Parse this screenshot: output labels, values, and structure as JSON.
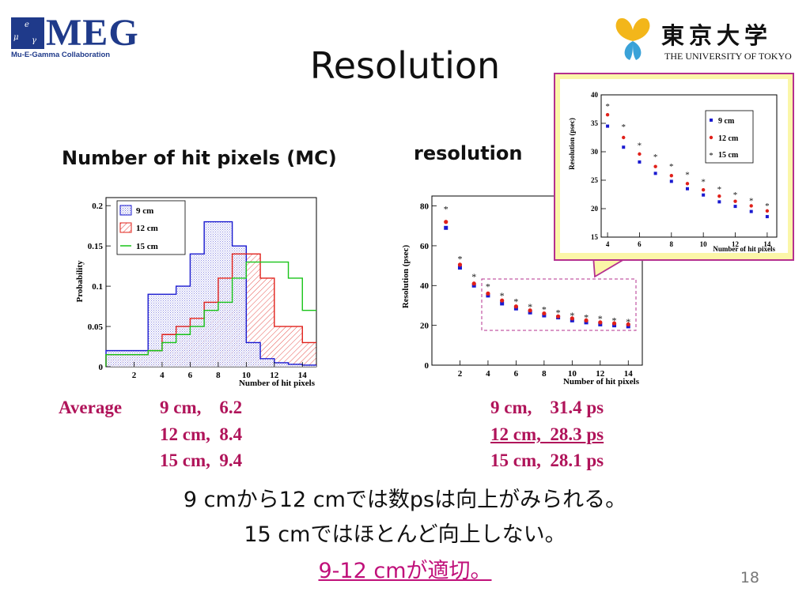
{
  "logos": {
    "meg_word": "MEG",
    "meg_sub": "Mu-E-Gamma Collaboration",
    "meg_mark_glyphs": [
      "μ",
      "e",
      "γ"
    ],
    "ut_jp": "東京大学",
    "ut_en": "THE UNIVERSITY OF TOKYO"
  },
  "slide": {
    "title": "Resolution",
    "left_heading": "Number of hit pixels (MC)",
    "right_heading": "resolution",
    "page_number": "18"
  },
  "stats": {
    "average_label": "Average",
    "hits": [
      "9 cm,    6.2",
      "12 cm,  8.4",
      "15 cm,  9.4"
    ],
    "resolution": [
      "9 cm,    31.4 ps",
      "12 cm,  28.3 ps",
      "15 cm,  28.1 ps"
    ]
  },
  "text": {
    "line1": "9 cmから12 cmでは数psは向上がみられる。",
    "line2": "15 cmではほとんど向上しない。",
    "line3": "9-12 cmが適切。"
  },
  "colors": {
    "blue": "#1a1ad0",
    "red": "#e0201a",
    "green": "#18c418",
    "accent": "#b0145a",
    "meg": "#1f3a8a",
    "callout_bg": "#fbf6a8",
    "callout_border": "#b5308f",
    "highlight_box": "#b5308f"
  },
  "chart_data": [
    {
      "type": "histogram",
      "ylabel": "Probability",
      "xlabel": "Number of hit pixels",
      "xlim": [
        0,
        15
      ],
      "ylim": [
        0,
        0.21
      ],
      "x_ticks": [
        "2",
        "4",
        "6",
        "8",
        "10",
        "12",
        "14"
      ],
      "y_ticks": [
        "0",
        "0.05",
        "0.1",
        "0.15",
        "0.2"
      ],
      "bin_edges": [
        0,
        1,
        2,
        3,
        4,
        5,
        6,
        7,
        8,
        9,
        10,
        11,
        12,
        13,
        14,
        15
      ],
      "legend": "top-left",
      "series": [
        {
          "name": "9 cm",
          "color": "#1a1ad0",
          "values": [
            0.02,
            0.02,
            0.02,
            0.09,
            0.09,
            0.1,
            0.14,
            0.18,
            0.18,
            0.15,
            0.03,
            0.01,
            0.005,
            0.003,
            0.002
          ]
        },
        {
          "name": "12 cm",
          "color": "#e0201a",
          "values": [
            0.015,
            0.015,
            0.015,
            0.02,
            0.04,
            0.05,
            0.06,
            0.08,
            0.11,
            0.14,
            0.14,
            0.11,
            0.05,
            0.05,
            0.03
          ]
        },
        {
          "name": "15 cm",
          "color": "#18c418",
          "values": [
            0.015,
            0.015,
            0.015,
            0.02,
            0.03,
            0.04,
            0.05,
            0.07,
            0.08,
            0.11,
            0.13,
            0.13,
            0.13,
            0.11,
            0.07
          ]
        }
      ]
    },
    {
      "type": "scatter",
      "ylabel": "Resolution (psec)",
      "xlabel": "Number of hit pixels",
      "xlim": [
        0,
        15
      ],
      "ylim": [
        0,
        85
      ],
      "x_ticks": [
        "2",
        "4",
        "6",
        "8",
        "10",
        "12",
        "14"
      ],
      "y_ticks": [
        "0",
        "20",
        "40",
        "60",
        "80"
      ],
      "series": [
        {
          "name": "9 cm",
          "marker": "square",
          "x": [
            1,
            2,
            3,
            4,
            5,
            6,
            7,
            8,
            9,
            10,
            11,
            12,
            13,
            14
          ],
          "y": [
            69,
            49,
            40,
            35,
            31,
            28.5,
            26.5,
            25,
            24,
            22.5,
            21.5,
            20.5,
            20,
            19.5
          ]
        },
        {
          "name": "12 cm",
          "marker": "circle",
          "x": [
            1,
            2,
            3,
            4,
            5,
            6,
            7,
            8,
            9,
            10,
            11,
            12,
            13,
            14
          ],
          "y": [
            72,
            50.5,
            41,
            36,
            32.5,
            29.5,
            27.5,
            26,
            24.5,
            23.5,
            22.5,
            21.5,
            21,
            20.5
          ]
        },
        {
          "name": "15 cm",
          "marker": "star",
          "x": [
            1,
            2,
            3,
            4,
            5,
            6,
            7,
            8,
            9,
            10,
            11,
            12,
            13,
            14
          ],
          "y": [
            79,
            54,
            45,
            40,
            35.5,
            32.5,
            30,
            28.5,
            27,
            25.5,
            24.5,
            24,
            23,
            22.5
          ]
        }
      ]
    },
    {
      "type": "scatter",
      "ylabel": "Resolution (psec)",
      "xlabel": "Number of hit pixels",
      "xlim": [
        3.6,
        14.6
      ],
      "ylim": [
        15,
        40
      ],
      "x_ticks": [
        "4",
        "6",
        "8",
        "10",
        "12",
        "14"
      ],
      "y_ticks": [
        "15",
        "20",
        "25",
        "30",
        "35",
        "40"
      ],
      "legend": "top-right",
      "series": [
        {
          "name": "9 cm",
          "marker": "square",
          "x": [
            4,
            5,
            6,
            7,
            8,
            9,
            10,
            11,
            12,
            13,
            14
          ],
          "y": [
            34.5,
            30.8,
            28.2,
            26.2,
            24.8,
            23.5,
            22.4,
            21.2,
            20.4,
            19.5,
            18.6
          ]
        },
        {
          "name": "12 cm",
          "marker": "circle",
          "x": [
            4,
            5,
            6,
            7,
            8,
            9,
            10,
            11,
            12,
            13,
            14
          ],
          "y": [
            36.5,
            32.5,
            29.6,
            27.4,
            25.8,
            24.4,
            23.3,
            22.2,
            21.3,
            20.5,
            19.6
          ]
        },
        {
          "name": "15 cm",
          "marker": "star",
          "x": [
            4,
            5,
            6,
            7,
            8,
            9,
            10,
            11,
            12,
            13,
            14
          ],
          "y": [
            38.2,
            34.6,
            31.3,
            29.3,
            27.6,
            26.2,
            24.9,
            23.6,
            22.6,
            21.6,
            20.7
          ]
        }
      ]
    }
  ]
}
